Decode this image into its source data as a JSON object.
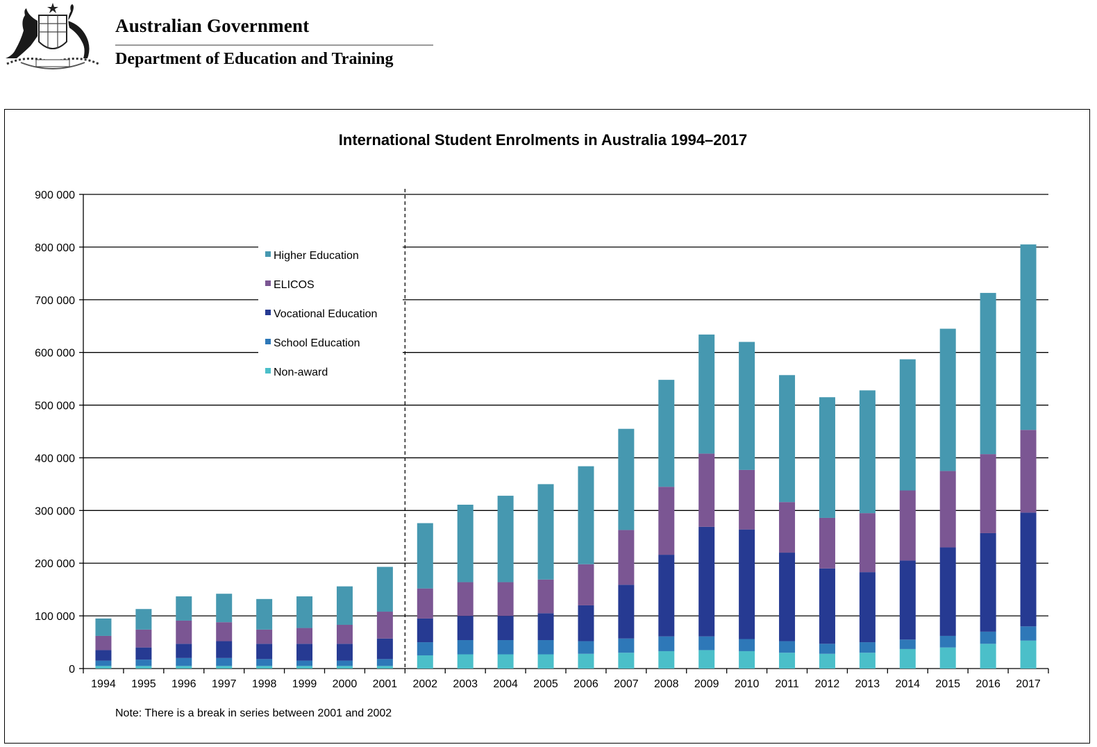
{
  "header": {
    "government": "Australian Government",
    "department": "Department of Education and Training"
  },
  "chart_data": {
    "type": "bar",
    "stacked": true,
    "title": "International Student Enrolments in Australia 1994–2017",
    "xlabel": "",
    "ylabel": "",
    "ylim": [
      0,
      900000
    ],
    "yticks": [
      0,
      100000,
      200000,
      300000,
      400000,
      500000,
      600000,
      700000,
      800000,
      900000
    ],
    "ytick_labels": [
      "0",
      "100 000",
      "200 000",
      "300 000",
      "400 000",
      "500 000",
      "600 000",
      "700 000",
      "800 000",
      "900 000"
    ],
    "grid": true,
    "legend_position": "upper-left-inside",
    "break_between": [
      "2001",
      "2002"
    ],
    "categories": [
      "1994",
      "1995",
      "1996",
      "1997",
      "1998",
      "1999",
      "2000",
      "2001",
      "2002",
      "2003",
      "2004",
      "2005",
      "2006",
      "2007",
      "2008",
      "2009",
      "2010",
      "2011",
      "2012",
      "2013",
      "2014",
      "2015",
      "2016",
      "2017"
    ],
    "series": [
      {
        "name": "Non-award",
        "color": "#4bbfc9",
        "values": [
          5000,
          5000,
          5000,
          5000,
          5000,
          5000,
          5000,
          5000,
          25000,
          27000,
          27000,
          27000,
          28000,
          30000,
          33000,
          35000,
          33000,
          30000,
          28000,
          30000,
          37000,
          40000,
          47000,
          53000
        ]
      },
      {
        "name": "School Education",
        "color": "#2e78b8",
        "values": [
          10000,
          12000,
          15000,
          15000,
          13000,
          10000,
          10000,
          13000,
          25000,
          27000,
          27000,
          27000,
          24000,
          27000,
          28000,
          26000,
          23000,
          22000,
          19000,
          20000,
          18000,
          22000,
          23000,
          27000
        ]
      },
      {
        "name": "Vocational Education",
        "color": "#263a92",
        "values": [
          20000,
          23000,
          27000,
          32000,
          29000,
          32000,
          32000,
          39000,
          45000,
          46000,
          46000,
          51000,
          68000,
          102000,
          155000,
          208000,
          208000,
          168000,
          143000,
          133000,
          150000,
          168000,
          187000,
          216000
        ]
      },
      {
        "name": "ELICOS",
        "color": "#7b5693",
        "values": [
          27000,
          34000,
          44000,
          36000,
          27000,
          30000,
          36000,
          51000,
          57000,
          64000,
          64000,
          64000,
          78000,
          104000,
          129000,
          139000,
          113000,
          96000,
          96000,
          112000,
          133000,
          145000,
          150000,
          157000
        ]
      },
      {
        "name": "Higher Education",
        "color": "#4698b0",
        "values": [
          33000,
          39000,
          46000,
          54000,
          58000,
          60000,
          73000,
          85000,
          124000,
          147000,
          164000,
          181000,
          186000,
          192000,
          203000,
          226000,
          243000,
          241000,
          229000,
          233000,
          249000,
          270000,
          306000,
          352000
        ]
      }
    ],
    "legend_order": [
      "Higher Education",
      "ELICOS",
      "Vocational Education",
      "School Education",
      "Non-award"
    ],
    "note": "Note: There is a break in series between 2001 and 2002"
  }
}
